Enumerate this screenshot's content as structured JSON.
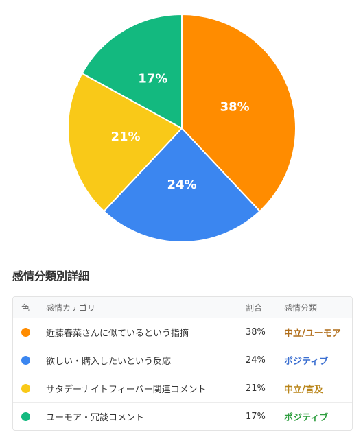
{
  "chart_data": {
    "type": "pie",
    "slices": [
      {
        "label": "近藤春菜さんに似ているという指摘",
        "value": 38,
        "display": "38%",
        "color": "#FF8C00"
      },
      {
        "label": "欲しい・購入したいという反応",
        "value": 24,
        "display": "24%",
        "color": "#3B86F0"
      },
      {
        "label": "サタデーナイトフィーバー関連コメント",
        "value": 21,
        "display": "21%",
        "color": "#F9C918"
      },
      {
        "label": "ユーモア・冗談コメント",
        "value": 17,
        "display": "17%",
        "color": "#13B97F"
      }
    ]
  },
  "section_title": "感情分類別詳細",
  "table": {
    "headers": {
      "color": "色",
      "category": "感情カテゴリ",
      "ratio": "割合",
      "type": "感情分類"
    },
    "rows": [
      {
        "category": "近藤春菜さんに似ているという指摘",
        "ratio": "38%",
        "type": "中立/ユーモア",
        "dot_color": "#FF8C00",
        "type_color": "#B06D1A"
      },
      {
        "category": "欲しい・購入したいという反応",
        "ratio": "24%",
        "type": "ポジティブ",
        "dot_color": "#3B86F0",
        "type_color": "#3B6FD1"
      },
      {
        "category": "サタデーナイトフィーバー関連コメント",
        "ratio": "21%",
        "type": "中立/言及",
        "dot_color": "#F9C918",
        "type_color": "#B9851A"
      },
      {
        "category": "ユーモア・冗談コメント",
        "ratio": "17%",
        "type": "ポジティブ",
        "dot_color": "#13B97F",
        "type_color": "#2E9E3F"
      }
    ]
  }
}
